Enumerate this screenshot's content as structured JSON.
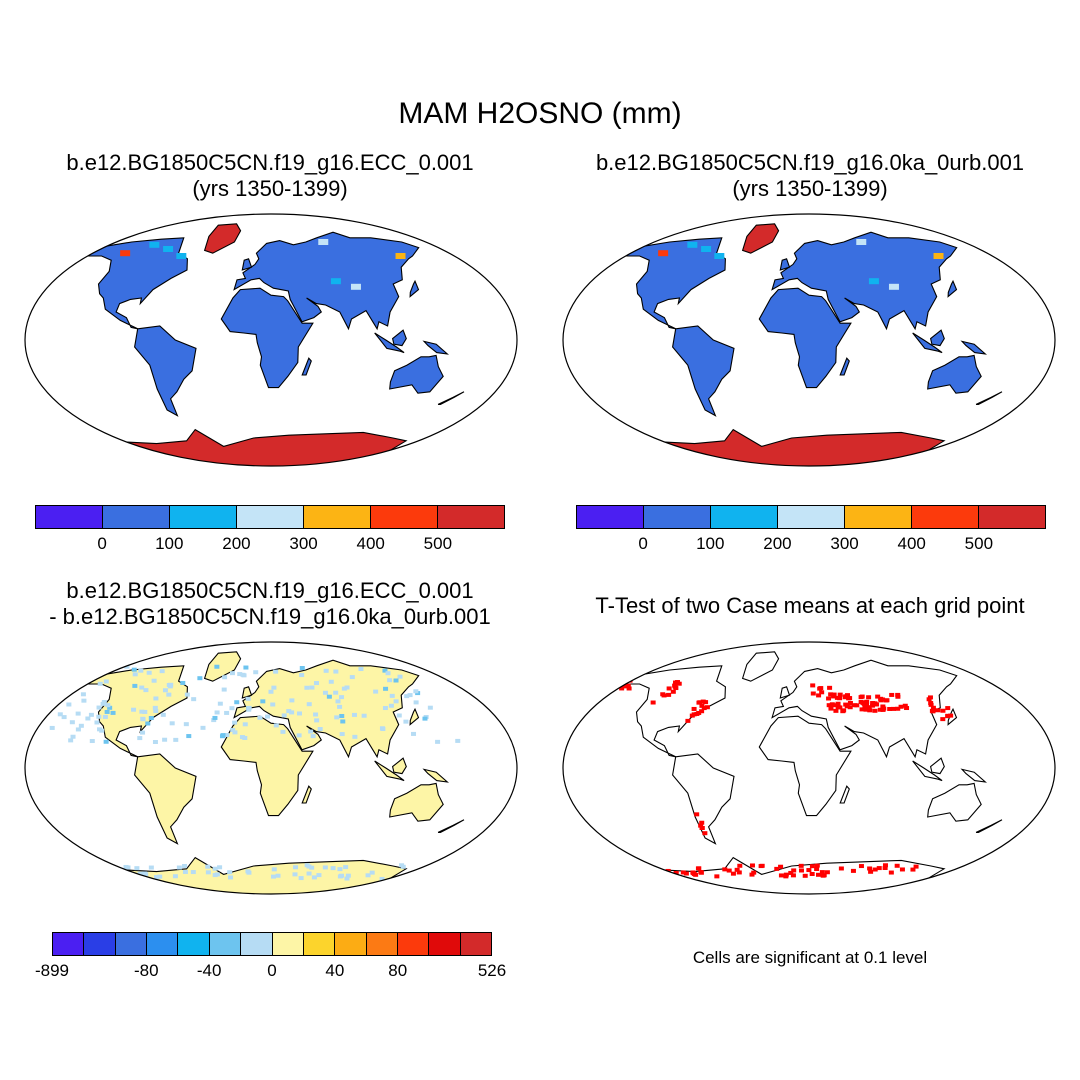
{
  "main_title": "MAM H2OSNO (mm)",
  "panels": {
    "top_left": {
      "title_line1": "b.e12.BG1850C5CN.f19_g16.ECC_0.001",
      "title_line2": "(yrs 1350-1399)"
    },
    "top_right": {
      "title_line1": "b.e12.BG1850C5CN.f19_g16.0ka_0urb.001",
      "title_line2": "(yrs 1350-1399)"
    },
    "bottom_left": {
      "title_line1": "b.e12.BG1850C5CN.f19_g16.ECC_0.001",
      "title_line2": "- b.e12.BG1850C5CN.f19_g16.0ka_0urb.001"
    },
    "bottom_right": {
      "title_line1": "T-Test of two Case means at each grid point",
      "note": "Cells are significant at 0.1 level"
    }
  },
  "colorbars": {
    "absolute": {
      "colors": [
        "#4b1ff2",
        "#3a6fe0",
        "#10b3ef",
        "#c4e4f7",
        "#fcb414",
        "#fc3a0c",
        "#d32a2a"
      ],
      "labels": [
        "0",
        "100",
        "200",
        "300",
        "400",
        "500"
      ]
    },
    "difference": {
      "colors": [
        "#4b1ff2",
        "#2a3ee6",
        "#3a6fe0",
        "#2c8fef",
        "#10b3ef",
        "#6dc4ef",
        "#b6dcf4",
        "#fdf5a6",
        "#fcd42c",
        "#fcac14",
        "#fc7a14",
        "#fc3a0c",
        "#e00a0a",
        "#d32a2a"
      ],
      "labels": [
        "-899",
        "-80",
        "-40",
        "0",
        "40",
        "80",
        "526"
      ]
    }
  },
  "colors": {
    "land_snowfree": "#3a6fe0",
    "heavy_snow": "#d32a2a",
    "diff_land": "#fdf5a6",
    "diff_negative": "#b6dcf4",
    "significant": "#ff0000"
  },
  "icons": {
    "map_panels": "world-map-robinson"
  }
}
